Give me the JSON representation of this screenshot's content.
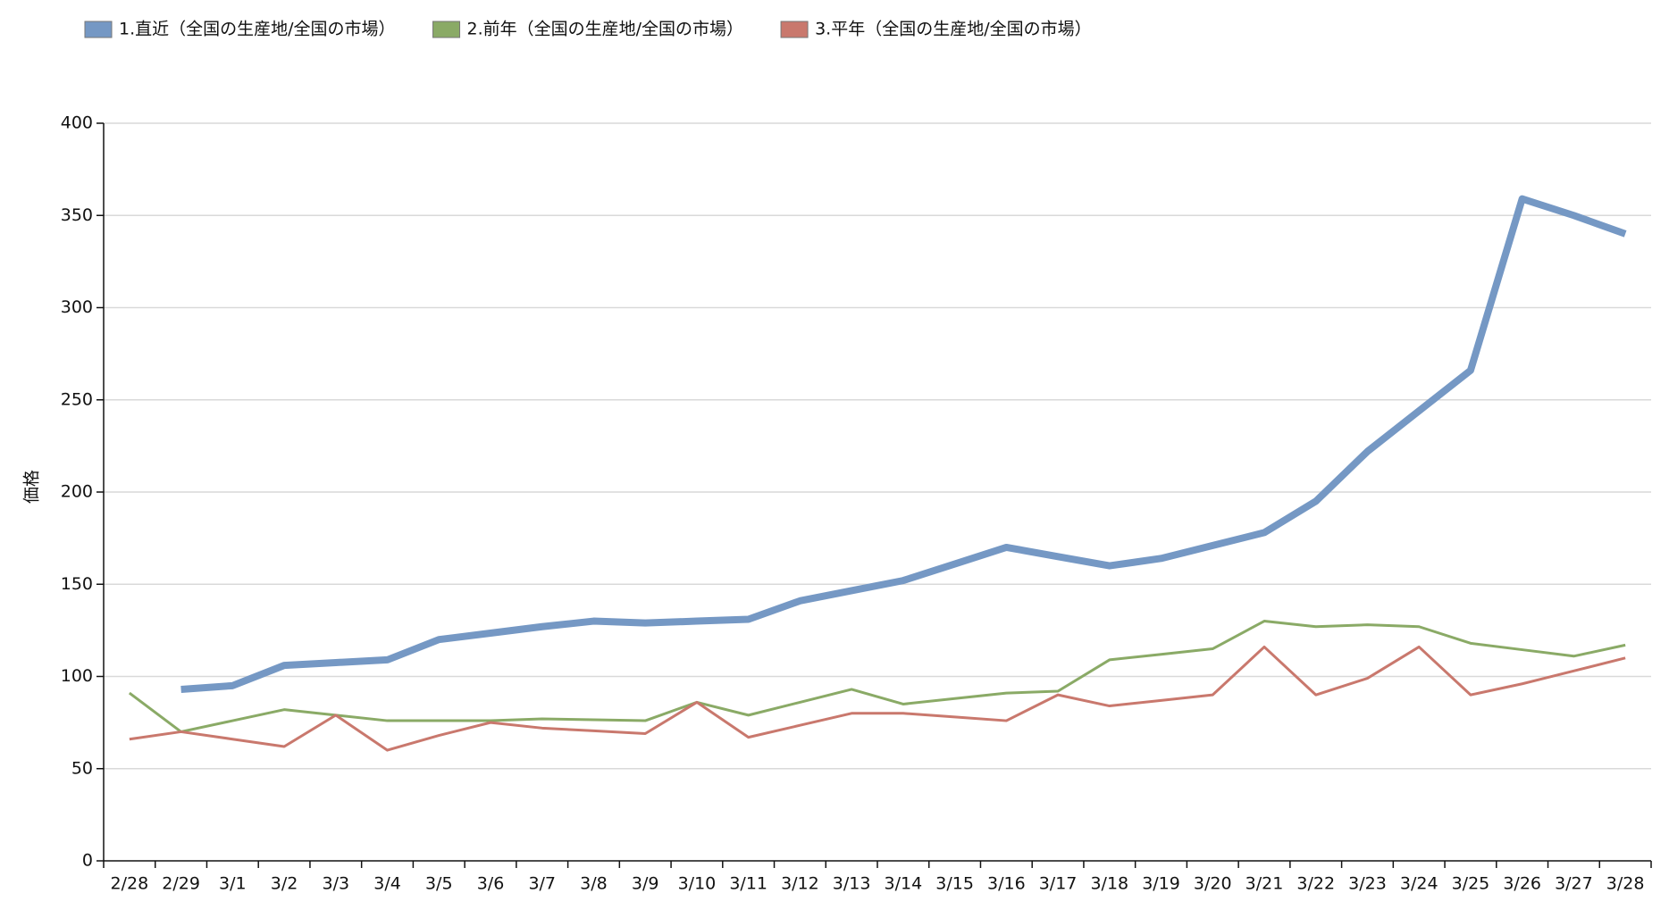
{
  "chart_data": {
    "type": "line",
    "ylabel": "価格",
    "categories": [
      "2/28",
      "2/29",
      "3/1",
      "3/2",
      "3/3",
      "3/4",
      "3/5",
      "3/6",
      "3/7",
      "3/8",
      "3/9",
      "3/10",
      "3/11",
      "3/12",
      "3/13",
      "3/14",
      "3/15",
      "3/16",
      "3/17",
      "3/18",
      "3/19",
      "3/20",
      "3/21",
      "3/22",
      "3/23",
      "3/24",
      "3/25",
      "3/26",
      "3/27",
      "3/28"
    ],
    "series": [
      {
        "name": "1.直近（全国の生産地/全国の市場）",
        "color": "#7598c4",
        "width": 8,
        "values": [
          null,
          93,
          95,
          106,
          107.5,
          109,
          120,
          123.5,
          127,
          130,
          129,
          130,
          131,
          141,
          146.5,
          152,
          161,
          170,
          165,
          160,
          164,
          171,
          178,
          195,
          222,
          244,
          266,
          359,
          350,
          340
        ]
      },
      {
        "name": "2.前年（全国の生産地/全国の市場）",
        "color": "#8aaa66",
        "width": 3,
        "values": [
          91,
          70,
          76,
          82,
          79,
          76,
          76,
          76,
          77,
          76.5,
          76,
          86,
          79,
          86,
          93,
          85,
          88,
          91,
          92,
          109,
          112,
          115,
          130,
          127,
          128,
          127,
          118,
          114.5,
          111,
          117
        ]
      },
      {
        "name": "3.平年（全国の生産地/全国の市場）",
        "color": "#c9786d",
        "width": 3,
        "values": [
          66,
          70,
          66,
          62,
          79,
          60,
          68,
          75,
          72,
          70.5,
          69,
          86,
          67,
          73.5,
          80,
          80,
          78,
          76,
          90,
          84,
          87,
          90,
          116,
          90,
          99,
          116,
          90,
          96,
          103,
          110
        ]
      }
    ],
    "ylim": [
      0,
      400
    ],
    "yticks": [
      0,
      50,
      100,
      150,
      200,
      250,
      300,
      350,
      400
    ],
    "grid": true
  }
}
